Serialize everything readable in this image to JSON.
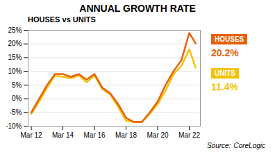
{
  "chart_data": {
    "type": "line",
    "title": "ANNUAL GROWTH RATE",
    "subtitle": "HOUSES vs UNITS",
    "x": [
      0,
      0.5,
      1,
      1.5,
      2,
      2.5,
      3,
      3.5,
      4,
      4.5,
      5,
      5.5,
      6,
      6.5,
      7,
      7.5,
      8,
      8.5,
      9,
      9.5,
      10,
      10.4
    ],
    "series": [
      {
        "name": "UNITS",
        "color": "#f5c200",
        "values": [
          -5.5,
          -1,
          4,
          8.5,
          8,
          7.5,
          8.5,
          6,
          8.5,
          3.5,
          1.5,
          -3,
          -8,
          -8.5,
          -8.5,
          -5.5,
          -2,
          3,
          9,
          12,
          18,
          11.4
        ]
      },
      {
        "name": "HOUSES",
        "color": "#e8600a",
        "values": [
          -5,
          0,
          5,
          9,
          9,
          8,
          9,
          7,
          9,
          4,
          2,
          -2,
          -7,
          -8.5,
          -8.5,
          -5,
          -1,
          5,
          10,
          14,
          24,
          20.2
        ]
      }
    ],
    "xlim": [
      -0.2,
      10.7
    ],
    "xticks": [
      {
        "value": 0,
        "label": "Mar 12"
      },
      {
        "value": 2,
        "label": "Mar 14"
      },
      {
        "value": 4,
        "label": "Mar 16"
      },
      {
        "value": 6,
        "label": "Mar 18"
      },
      {
        "value": 8,
        "label": "Mar 20"
      },
      {
        "value": 10,
        "label": "Mar 22"
      }
    ],
    "ylim": [
      -10,
      25
    ],
    "yticks": [
      {
        "value": -10,
        "label": "-10%"
      },
      {
        "value": -5,
        "label": "-5%"
      },
      {
        "value": 0,
        "label": "0%"
      },
      {
        "value": 5,
        "label": "5%"
      },
      {
        "value": 10,
        "label": "10%"
      },
      {
        "value": 15,
        "label": "15%"
      },
      {
        "value": 20,
        "label": "20%"
      },
      {
        "value": 25,
        "label": "25%"
      }
    ],
    "grid": true,
    "legend": "right",
    "annotations": [
      {
        "text": "20.2%",
        "series": "HOUSES"
      },
      {
        "text": "11.4%",
        "series": "UNITS"
      },
      {
        "text": "Source:"
      },
      {
        "text": "CoreLogic"
      }
    ]
  }
}
